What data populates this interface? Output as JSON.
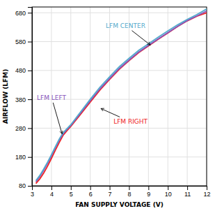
{
  "chart_data": {
    "type": "line",
    "xlabel": "FAN SUPPLY VOLTAGE (V)",
    "ylabel": "AIRFLOW (LFM)",
    "xlim": [
      3,
      12
    ],
    "ylim": [
      80,
      700
    ],
    "xticks": [
      3,
      4,
      5,
      6,
      7,
      8,
      9,
      10,
      11,
      12
    ],
    "yticks": [
      80,
      180,
      280,
      380,
      480,
      580,
      680
    ],
    "grid": true,
    "x": [
      3.2,
      3.4,
      3.6,
      3.8,
      4.0,
      4.2,
      4.4,
      4.6,
      4.8,
      5.0,
      5.5,
      6.0,
      6.5,
      7.0,
      7.5,
      8.0,
      8.5,
      9.0,
      9.5,
      10.0,
      10.5,
      11.0,
      11.5,
      12.0
    ],
    "series": [
      {
        "name": "LFM RIGHT",
        "color": "#ee2222",
        "values": [
          88,
          104,
          124,
          148,
          175,
          203,
          230,
          255,
          271,
          286,
          328,
          370,
          412,
          449,
          484,
          514,
          542,
          565,
          588,
          610,
          632,
          652,
          668,
          680
        ]
      },
      {
        "name": "LFM LEFT",
        "color": "#8855bb",
        "values": [
          94,
          112,
          134,
          158,
          184,
          212,
          238,
          260,
          275,
          289,
          332,
          375,
          416,
          452,
          487,
          516,
          544,
          567,
          589,
          611,
          633,
          653,
          669,
          686
        ]
      },
      {
        "name": "LFM CENTER",
        "color": "#55aacc",
        "values": [
          98,
          116,
          138,
          162,
          188,
          215,
          242,
          264,
          278,
          292,
          336,
          380,
          422,
          458,
          493,
          522,
          550,
          572,
          595,
          617,
          638,
          657,
          674,
          693
        ]
      }
    ],
    "annotations": [
      {
        "text": "LFM CENTER",
        "color": "#55aacc",
        "xy": [
          9.1,
          568
        ],
        "xytext": [
          6.8,
          628
        ]
      },
      {
        "text": "LFM LEFT",
        "color": "#8855bb",
        "xy": [
          4.55,
          260
        ],
        "xytext": [
          3.25,
          378
        ]
      },
      {
        "text": "LFM RIGHT",
        "color": "#ee2222",
        "xy": [
          6.55,
          348
        ],
        "xytext": [
          7.2,
          310
        ]
      }
    ]
  }
}
